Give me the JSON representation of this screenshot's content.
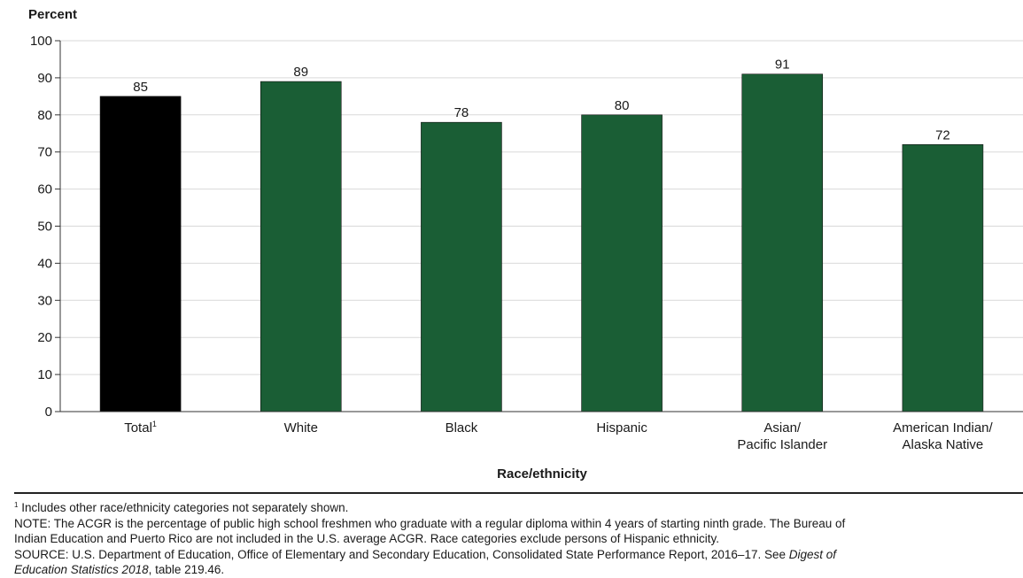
{
  "chart_data": {
    "type": "bar",
    "ylabel": "Percent",
    "xlabel": "Race/ethnicity",
    "ylim": [
      0,
      100
    ],
    "yticks": [
      0,
      10,
      20,
      30,
      40,
      50,
      60,
      70,
      80,
      90,
      100
    ],
    "grid": true,
    "categories": [
      {
        "lines": [
          "Total"
        ],
        "footnote_mark": "1"
      },
      {
        "lines": [
          "White"
        ]
      },
      {
        "lines": [
          "Black"
        ]
      },
      {
        "lines": [
          "Hispanic"
        ]
      },
      {
        "lines": [
          "Asian/",
          "Pacific Islander"
        ]
      },
      {
        "lines": [
          "American Indian/",
          "Alaska Native"
        ]
      }
    ],
    "values": [
      85,
      89,
      78,
      80,
      91,
      72
    ],
    "colors": [
      "#000000",
      "#1a5e35",
      "#1a5e35",
      "#1a5e35",
      "#1a5e35",
      "#1a5e35"
    ]
  },
  "notes": {
    "footnote_mark": "1",
    "footnote": "Includes other race/ethnicity categories not separately shown.",
    "note_line1": "NOTE: The ACGR is the percentage of public high school freshmen who graduate with a regular diploma within 4 years of starting ninth grade. The Bureau of",
    "note_line2": "Indian Education and Puerto Rico are not included in the U.S. average ACGR. Race categories exclude persons of Hispanic ethnicity.",
    "source_line1_text": "SOURCE: U.S. Department of Education, Office of Elementary and Secondary Education, Consolidated State Performance Report, 2016–17. See ",
    "source_line1_italic": "Digest of",
    "source_line2_italic": "Education Statistics 2018",
    "source_line2_text": ", table 219.46."
  }
}
